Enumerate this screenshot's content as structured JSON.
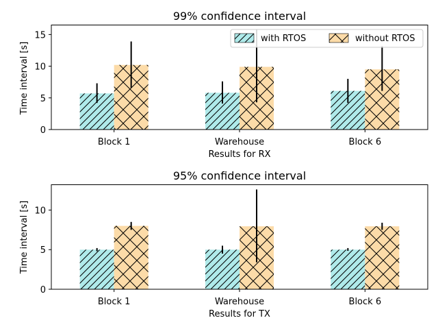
{
  "chart_data": [
    {
      "type": "bar",
      "title": "99% confidence interval",
      "xlabel": "Results for RX",
      "ylabel": "Time interval [s]",
      "categories": [
        "Block 1",
        "Warehouse",
        "Block 6"
      ],
      "ylim": [
        0,
        16.5
      ],
      "yticks": [
        0,
        5,
        10,
        15
      ],
      "grid": false,
      "legend": {
        "placement": "top-right",
        "columns": 2
      },
      "series": [
        {
          "name": "with RTOS",
          "color": "#afeaea",
          "hatch": "diagonal",
          "values": [
            5.7,
            5.8,
            6.1
          ],
          "err_low": [
            4.2,
            4.1,
            4.2
          ],
          "err_high": [
            7.3,
            7.6,
            8.0
          ]
        },
        {
          "name": "without RTOS",
          "color": "#fcdba8",
          "hatch": "crosshatch",
          "values": [
            10.2,
            9.9,
            9.5
          ],
          "err_low": [
            6.6,
            4.3,
            6.1
          ],
          "err_high": [
            13.9,
            15.8,
            13.2
          ]
        }
      ]
    },
    {
      "type": "bar",
      "title": "95% confidence interval",
      "xlabel": "Results for TX",
      "ylabel": "Time interval [s]",
      "categories": [
        "Block 1",
        "Warehouse",
        "Block 6"
      ],
      "ylim": [
        0,
        13.2
      ],
      "yticks": [
        0,
        5,
        10
      ],
      "grid": false,
      "series": [
        {
          "name": "with RTOS",
          "color": "#afeaea",
          "hatch": "diagonal",
          "values": [
            5.0,
            5.0,
            5.0
          ],
          "err_low": [
            4.8,
            4.5,
            4.85
          ],
          "err_high": [
            5.2,
            5.5,
            5.2
          ]
        },
        {
          "name": "without RTOS",
          "color": "#fcdba8",
          "hatch": "crosshatch",
          "values": [
            8.0,
            7.95,
            7.95
          ],
          "err_low": [
            7.5,
            3.4,
            7.5
          ],
          "err_high": [
            8.5,
            12.6,
            8.4
          ]
        }
      ]
    }
  ]
}
